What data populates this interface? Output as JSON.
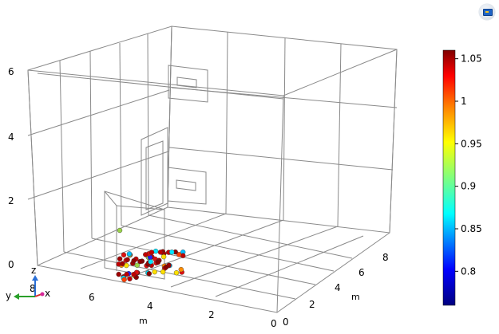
{
  "view": {
    "button_icon": "graphics-window-icon"
  },
  "axes": {
    "z_ticks": [
      "0",
      "2",
      "4",
      "6"
    ],
    "x_ticks": [
      "8",
      "6",
      "4",
      "2",
      "0"
    ],
    "x_unit": "m",
    "y_ticks": [
      "0",
      "2",
      "4",
      "6",
      "8"
    ],
    "y_unit": "m",
    "triad": {
      "x": "x",
      "y": "y",
      "z": "z"
    }
  },
  "colorbar": {
    "ticks": [
      "1.05",
      "1",
      "0.95",
      "0.9",
      "0.85",
      "0.8"
    ],
    "min": 0.76,
    "max": 1.06,
    "colormap": [
      "#00007f",
      "#0000ff",
      "#00ffff",
      "#7fff7f",
      "#ffff00",
      "#ff7f00",
      "#ff0000",
      "#7f0000"
    ]
  },
  "colors": {
    "wireframe": "#8a8a8a",
    "frame_dark": "#555555"
  }
}
